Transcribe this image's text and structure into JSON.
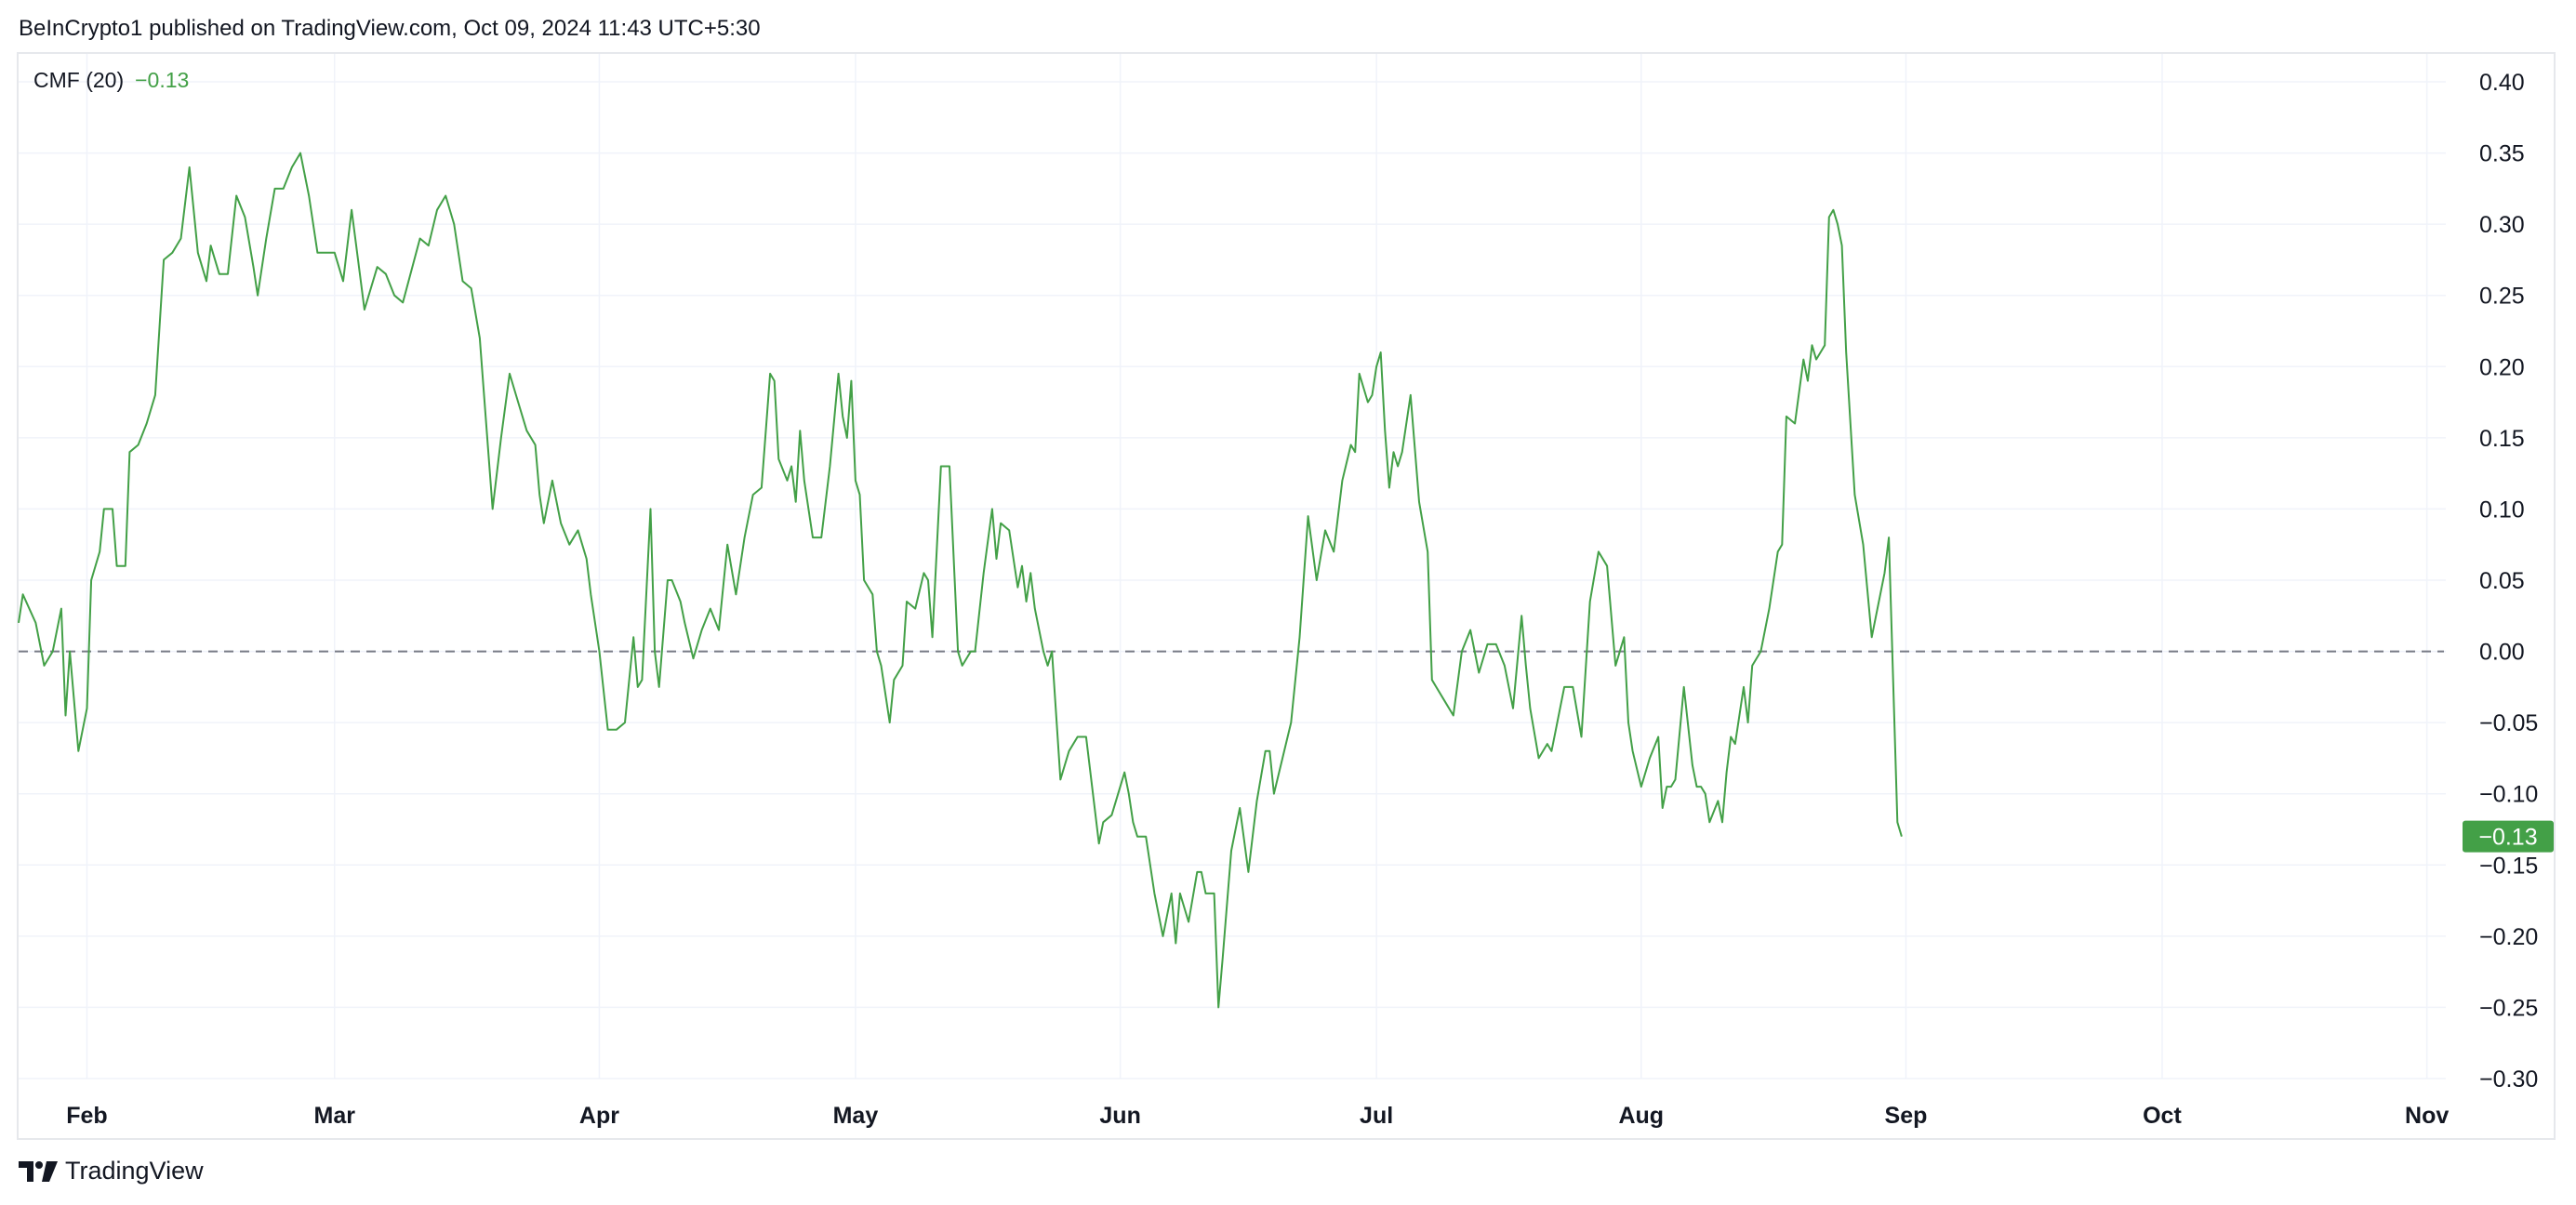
{
  "header": {
    "attribution": "BeInCrypto1 published on TradingView.com, Oct 09, 2024 11:43 UTC+5:30"
  },
  "legend": {
    "indicator": "CMF (20)",
    "value": "−0.13"
  },
  "footer": {
    "brand": "TradingView"
  },
  "colors": {
    "line": "#43a047",
    "badge_bg": "#43a047",
    "grid": "#f0f3fa",
    "zero_line": "#787b86",
    "axis_text": "#131722"
  },
  "chart_data": {
    "type": "line",
    "title": "",
    "xlabel": "",
    "ylabel": "",
    "ylim": [
      -0.3,
      0.4
    ],
    "y_tick_labels": [
      "0.40",
      "0.35",
      "0.30",
      "0.25",
      "0.20",
      "0.15",
      "0.10",
      "0.05",
      "0.00",
      "−0.05",
      "−0.10",
      "−0.15",
      "−0.20",
      "−0.25",
      "−0.30"
    ],
    "x_tick_labels": [
      "Feb",
      "Mar",
      "Apr",
      "May",
      "Jun",
      "Jul",
      "Aug",
      "Sep",
      "Oct",
      "Nov"
    ],
    "x_tick_days": [
      0,
      29,
      60,
      90,
      121,
      151,
      182,
      213,
      243,
      274
    ],
    "x_range_days": [
      -8,
      276
    ],
    "reference_line": {
      "y": 0.0,
      "style": "dashed"
    },
    "last_value_label": "−0.13",
    "last_value": -0.13,
    "grid": true,
    "series": [
      {
        "name": "CMF (20)",
        "points": [
          [
            -8,
            0.02
          ],
          [
            -7.5,
            0.04
          ],
          [
            -6,
            0.02
          ],
          [
            -5,
            -0.01
          ],
          [
            -4,
            0.0
          ],
          [
            -3,
            0.03
          ],
          [
            -2.5,
            -0.045
          ],
          [
            -2,
            0.0
          ],
          [
            -1,
            -0.07
          ],
          [
            0,
            -0.04
          ],
          [
            0.5,
            0.05
          ],
          [
            1.5,
            0.07
          ],
          [
            2,
            0.1
          ],
          [
            3,
            0.1
          ],
          [
            3.5,
            0.06
          ],
          [
            4.5,
            0.06
          ],
          [
            5,
            0.14
          ],
          [
            6,
            0.145
          ],
          [
            7,
            0.16
          ],
          [
            8,
            0.18
          ],
          [
            9,
            0.275
          ],
          [
            10,
            0.28
          ],
          [
            11,
            0.29
          ],
          [
            12,
            0.34
          ],
          [
            13,
            0.28
          ],
          [
            14,
            0.26
          ],
          [
            14.5,
            0.285
          ],
          [
            15.5,
            0.265
          ],
          [
            16.5,
            0.265
          ],
          [
            17.5,
            0.32
          ],
          [
            18.5,
            0.305
          ],
          [
            19.5,
            0.27
          ],
          [
            20,
            0.25
          ],
          [
            21,
            0.29
          ],
          [
            22,
            0.325
          ],
          [
            23,
            0.325
          ],
          [
            24,
            0.34
          ],
          [
            25,
            0.35
          ],
          [
            26,
            0.32
          ],
          [
            27,
            0.28
          ],
          [
            28,
            0.28
          ],
          [
            29,
            0.28
          ],
          [
            30,
            0.26
          ],
          [
            31,
            0.31
          ],
          [
            32.5,
            0.24
          ],
          [
            34,
            0.27
          ],
          [
            35,
            0.265
          ],
          [
            36,
            0.25
          ],
          [
            37,
            0.245
          ],
          [
            39,
            0.29
          ],
          [
            40,
            0.285
          ],
          [
            41,
            0.31
          ],
          [
            42,
            0.32
          ],
          [
            43,
            0.3
          ],
          [
            44,
            0.26
          ],
          [
            45,
            0.255
          ],
          [
            46,
            0.22
          ],
          [
            47,
            0.14
          ],
          [
            47.5,
            0.1
          ],
          [
            48.5,
            0.15
          ],
          [
            49.5,
            0.195
          ],
          [
            50.5,
            0.175
          ],
          [
            51.5,
            0.155
          ],
          [
            52.5,
            0.145
          ],
          [
            53,
            0.11
          ],
          [
            53.5,
            0.09
          ],
          [
            54.5,
            0.12
          ],
          [
            55.5,
            0.09
          ],
          [
            56.5,
            0.075
          ],
          [
            57.5,
            0.085
          ],
          [
            58.5,
            0.065
          ],
          [
            59,
            0.04
          ],
          [
            60,
            0.0
          ],
          [
            61,
            -0.055
          ],
          [
            62,
            -0.055
          ],
          [
            63,
            -0.05
          ],
          [
            64,
            0.01
          ],
          [
            64.5,
            -0.025
          ],
          [
            65,
            -0.02
          ],
          [
            66,
            0.1
          ],
          [
            66.5,
            0.0
          ],
          [
            67,
            -0.025
          ],
          [
            68,
            0.05
          ],
          [
            68.5,
            0.05
          ],
          [
            69.5,
            0.035
          ],
          [
            70,
            0.02
          ],
          [
            71,
            -0.005
          ],
          [
            72,
            0.015
          ],
          [
            73,
            0.03
          ],
          [
            74,
            0.015
          ],
          [
            75,
            0.075
          ],
          [
            76,
            0.04
          ],
          [
            77,
            0.08
          ],
          [
            78,
            0.11
          ],
          [
            79,
            0.115
          ],
          [
            80,
            0.195
          ],
          [
            80.5,
            0.19
          ],
          [
            81,
            0.135
          ],
          [
            82,
            0.12
          ],
          [
            82.5,
            0.13
          ],
          [
            83,
            0.105
          ],
          [
            83.5,
            0.155
          ],
          [
            84,
            0.12
          ],
          [
            85,
            0.08
          ],
          [
            86,
            0.08
          ],
          [
            87,
            0.13
          ],
          [
            88,
            0.195
          ],
          [
            88.5,
            0.165
          ],
          [
            89,
            0.15
          ],
          [
            89.5,
            0.19
          ],
          [
            90,
            0.12
          ],
          [
            90.5,
            0.11
          ],
          [
            91,
            0.05
          ],
          [
            92,
            0.04
          ],
          [
            92.5,
            0.0
          ],
          [
            93,
            -0.01
          ],
          [
            94,
            -0.05
          ],
          [
            94.5,
            -0.02
          ],
          [
            95.5,
            -0.01
          ],
          [
            96,
            0.035
          ],
          [
            97,
            0.03
          ],
          [
            98,
            0.055
          ],
          [
            98.5,
            0.05
          ],
          [
            99,
            0.01
          ],
          [
            100,
            0.13
          ],
          [
            101,
            0.13
          ],
          [
            102,
            0.0
          ],
          [
            102.5,
            -0.01
          ],
          [
            103.5,
            0.0
          ],
          [
            104,
            0.0
          ],
          [
            105,
            0.055
          ],
          [
            106,
            0.1
          ],
          [
            106.5,
            0.065
          ],
          [
            107,
            0.09
          ],
          [
            108,
            0.085
          ],
          [
            109,
            0.045
          ],
          [
            109.5,
            0.06
          ],
          [
            110,
            0.035
          ],
          [
            110.5,
            0.055
          ],
          [
            111,
            0.03
          ],
          [
            112,
            0.0
          ],
          [
            112.5,
            -0.01
          ],
          [
            113,
            0.0
          ],
          [
            114,
            -0.09
          ],
          [
            115,
            -0.07
          ],
          [
            116,
            -0.06
          ],
          [
            117,
            -0.06
          ],
          [
            118,
            -0.11
          ],
          [
            118.5,
            -0.135
          ],
          [
            119,
            -0.12
          ],
          [
            120,
            -0.115
          ],
          [
            121,
            -0.095
          ],
          [
            121.5,
            -0.085
          ],
          [
            122,
            -0.1
          ],
          [
            122.5,
            -0.12
          ],
          [
            123,
            -0.13
          ],
          [
            124,
            -0.13
          ],
          [
            125,
            -0.17
          ],
          [
            126,
            -0.2
          ],
          [
            127,
            -0.17
          ],
          [
            127.5,
            -0.205
          ],
          [
            128,
            -0.17
          ],
          [
            129,
            -0.19
          ],
          [
            130,
            -0.155
          ],
          [
            130.5,
            -0.155
          ],
          [
            131,
            -0.17
          ],
          [
            132,
            -0.17
          ],
          [
            132.5,
            -0.25
          ],
          [
            133,
            -0.215
          ],
          [
            134,
            -0.14
          ],
          [
            135,
            -0.11
          ],
          [
            136,
            -0.155
          ],
          [
            137,
            -0.105
          ],
          [
            138,
            -0.07
          ],
          [
            138.5,
            -0.07
          ],
          [
            139,
            -0.1
          ],
          [
            140,
            -0.075
          ],
          [
            141,
            -0.05
          ],
          [
            142,
            0.01
          ],
          [
            143,
            0.095
          ],
          [
            144,
            0.05
          ],
          [
            145,
            0.085
          ],
          [
            146,
            0.07
          ],
          [
            147,
            0.12
          ],
          [
            148,
            0.145
          ],
          [
            148.5,
            0.14
          ],
          [
            149,
            0.195
          ],
          [
            150,
            0.175
          ],
          [
            150.5,
            0.18
          ],
          [
            151,
            0.2
          ],
          [
            151.5,
            0.21
          ],
          [
            152,
            0.155
          ],
          [
            152.5,
            0.115
          ],
          [
            153,
            0.14
          ],
          [
            153.5,
            0.13
          ],
          [
            154,
            0.14
          ],
          [
            155,
            0.18
          ],
          [
            156,
            0.105
          ],
          [
            157,
            0.07
          ],
          [
            157.5,
            -0.02
          ],
          [
            158,
            -0.025
          ],
          [
            159,
            -0.035
          ],
          [
            160,
            -0.045
          ],
          [
            161,
            0.0
          ],
          [
            162,
            0.015
          ],
          [
            163,
            -0.015
          ],
          [
            164,
            0.005
          ],
          [
            165,
            0.005
          ],
          [
            166,
            -0.01
          ],
          [
            167,
            -0.04
          ],
          [
            168,
            0.025
          ],
          [
            168.5,
            -0.01
          ],
          [
            169,
            -0.04
          ],
          [
            170,
            -0.075
          ],
          [
            171,
            -0.065
          ],
          [
            171.5,
            -0.07
          ],
          [
            172,
            -0.055
          ],
          [
            173,
            -0.025
          ],
          [
            174,
            -0.025
          ],
          [
            175,
            -0.06
          ],
          [
            176,
            0.035
          ],
          [
            177,
            0.07
          ],
          [
            178,
            0.06
          ],
          [
            179,
            -0.01
          ],
          [
            180,
            0.01
          ],
          [
            180.5,
            -0.05
          ],
          [
            181,
            -0.07
          ],
          [
            182,
            -0.095
          ],
          [
            183,
            -0.075
          ],
          [
            184,
            -0.06
          ],
          [
            184.5,
            -0.11
          ],
          [
            185,
            -0.095
          ],
          [
            185.5,
            -0.095
          ],
          [
            186,
            -0.09
          ],
          [
            187,
            -0.025
          ],
          [
            188,
            -0.08
          ],
          [
            188.5,
            -0.095
          ],
          [
            189,
            -0.095
          ],
          [
            189.5,
            -0.1
          ],
          [
            190,
            -0.12
          ],
          [
            191,
            -0.105
          ],
          [
            191.5,
            -0.12
          ],
          [
            192,
            -0.085
          ],
          [
            192.5,
            -0.06
          ],
          [
            193,
            -0.065
          ],
          [
            194,
            -0.025
          ],
          [
            194.5,
            -0.05
          ],
          [
            195,
            -0.01
          ],
          [
            196,
            0.0
          ],
          [
            197,
            0.03
          ],
          [
            198,
            0.07
          ],
          [
            198.5,
            0.075
          ],
          [
            199,
            0.165
          ],
          [
            200,
            0.16
          ],
          [
            201,
            0.205
          ],
          [
            201.5,
            0.19
          ],
          [
            202,
            0.215
          ],
          [
            202.5,
            0.205
          ],
          [
            203,
            0.21
          ],
          [
            203.5,
            0.215
          ],
          [
            204,
            0.305
          ],
          [
            204.5,
            0.31
          ],
          [
            205,
            0.3
          ],
          [
            205.5,
            0.285
          ],
          [
            206,
            0.21
          ],
          [
            207,
            0.11
          ],
          [
            208,
            0.075
          ],
          [
            209,
            0.01
          ],
          [
            210,
            0.04
          ],
          [
            210.5,
            0.055
          ],
          [
            211,
            0.08
          ],
          [
            212,
            -0.12
          ],
          [
            212.5,
            -0.13
          ]
        ]
      }
    ]
  }
}
